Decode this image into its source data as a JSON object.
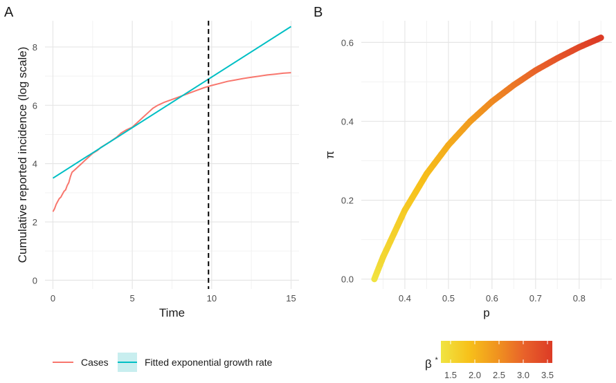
{
  "chart_data": [
    {
      "panel": "A",
      "type": "line",
      "xlabel": "Time",
      "ylabel": "Cumulative reported incidence (log scale)",
      "xlim": [
        -0.5,
        15.5
      ],
      "ylim": [
        -0.3,
        8.9
      ],
      "xticks": [
        0,
        5,
        10,
        15
      ],
      "yticks": [
        0,
        2,
        4,
        6,
        8
      ],
      "grid": true,
      "vline": {
        "x": 9.8,
        "style": "dashed",
        "color": "#000000"
      },
      "legend_position": "bottom",
      "series": [
        {
          "name": "Cases",
          "color": "#f8766d",
          "x": [
            0,
            0.1,
            0.2,
            0.3,
            0.4,
            0.5,
            0.6,
            0.7,
            0.8,
            0.9,
            1.0,
            1.1,
            1.2,
            1.4,
            1.6,
            1.8,
            2.0,
            2.2,
            2.5,
            2.8,
            3.0,
            3.3,
            3.6,
            4.0,
            4.3,
            4.6,
            5.0,
            5.3,
            5.6,
            6.0,
            6.3,
            6.6,
            7.0,
            7.5,
            8.0,
            8.5,
            9.0,
            9.5,
            10.0,
            10.5,
            11.0,
            11.5,
            12.0,
            12.5,
            13.0,
            13.5,
            14.0,
            14.5,
            15.0
          ],
          "values": [
            2.35,
            2.45,
            2.6,
            2.7,
            2.8,
            2.85,
            2.95,
            3.05,
            3.1,
            3.25,
            3.35,
            3.55,
            3.7,
            3.8,
            3.9,
            4.0,
            4.1,
            4.2,
            4.35,
            4.45,
            4.55,
            4.65,
            4.75,
            4.9,
            5.05,
            5.15,
            5.25,
            5.4,
            5.55,
            5.75,
            5.9,
            6.0,
            6.1,
            6.2,
            6.3,
            6.4,
            6.5,
            6.6,
            6.68,
            6.75,
            6.82,
            6.87,
            6.92,
            6.96,
            7.0,
            7.04,
            7.07,
            7.1,
            7.12
          ]
        },
        {
          "name": "Fitted exponential growth rate",
          "color": "#00bfc4",
          "x": [
            0,
            15
          ],
          "values": [
            3.5,
            8.7
          ]
        }
      ]
    },
    {
      "panel": "B",
      "type": "line",
      "xlabel": "p",
      "ylabel": "π",
      "xlim": [
        0.3,
        0.875
      ],
      "ylim": [
        -0.025,
        0.655
      ],
      "xticks": [
        0.4,
        0.5,
        0.6,
        0.7,
        0.8
      ],
      "xtick_labels": [
        "0.4",
        "0.5",
        "0.6",
        "0.7",
        "0.8"
      ],
      "yticks": [
        0.0,
        0.2,
        0.4,
        0.6
      ],
      "ytick_labels": [
        "0.0",
        "0.2",
        "0.4",
        "0.6"
      ],
      "grid": true,
      "color_scale": {
        "title": "β*",
        "range": [
          1.3,
          3.6
        ],
        "ticks": [
          "1.5",
          "2.0",
          "2.5",
          "3.0",
          "3.5"
        ],
        "colors": [
          "#f0e442",
          "#f7c11a",
          "#f0941f",
          "#e8612a",
          "#dc3b26"
        ]
      },
      "series": [
        {
          "x": [
            0.33,
            0.35,
            0.4,
            0.45,
            0.5,
            0.55,
            0.6,
            0.65,
            0.7,
            0.75,
            0.8,
            0.85
          ],
          "values": [
            0.0,
            0.056,
            0.175,
            0.267,
            0.34,
            0.4,
            0.45,
            0.492,
            0.529,
            0.56,
            0.588,
            0.612
          ]
        }
      ]
    }
  ],
  "panelA": {
    "label": "A"
  },
  "panelB": {
    "label": "B"
  },
  "legend": {
    "cases": "Cases",
    "fitted": "Fitted exponential growth rate"
  },
  "colorbar": {
    "title_main": "β",
    "title_sup": "*"
  }
}
